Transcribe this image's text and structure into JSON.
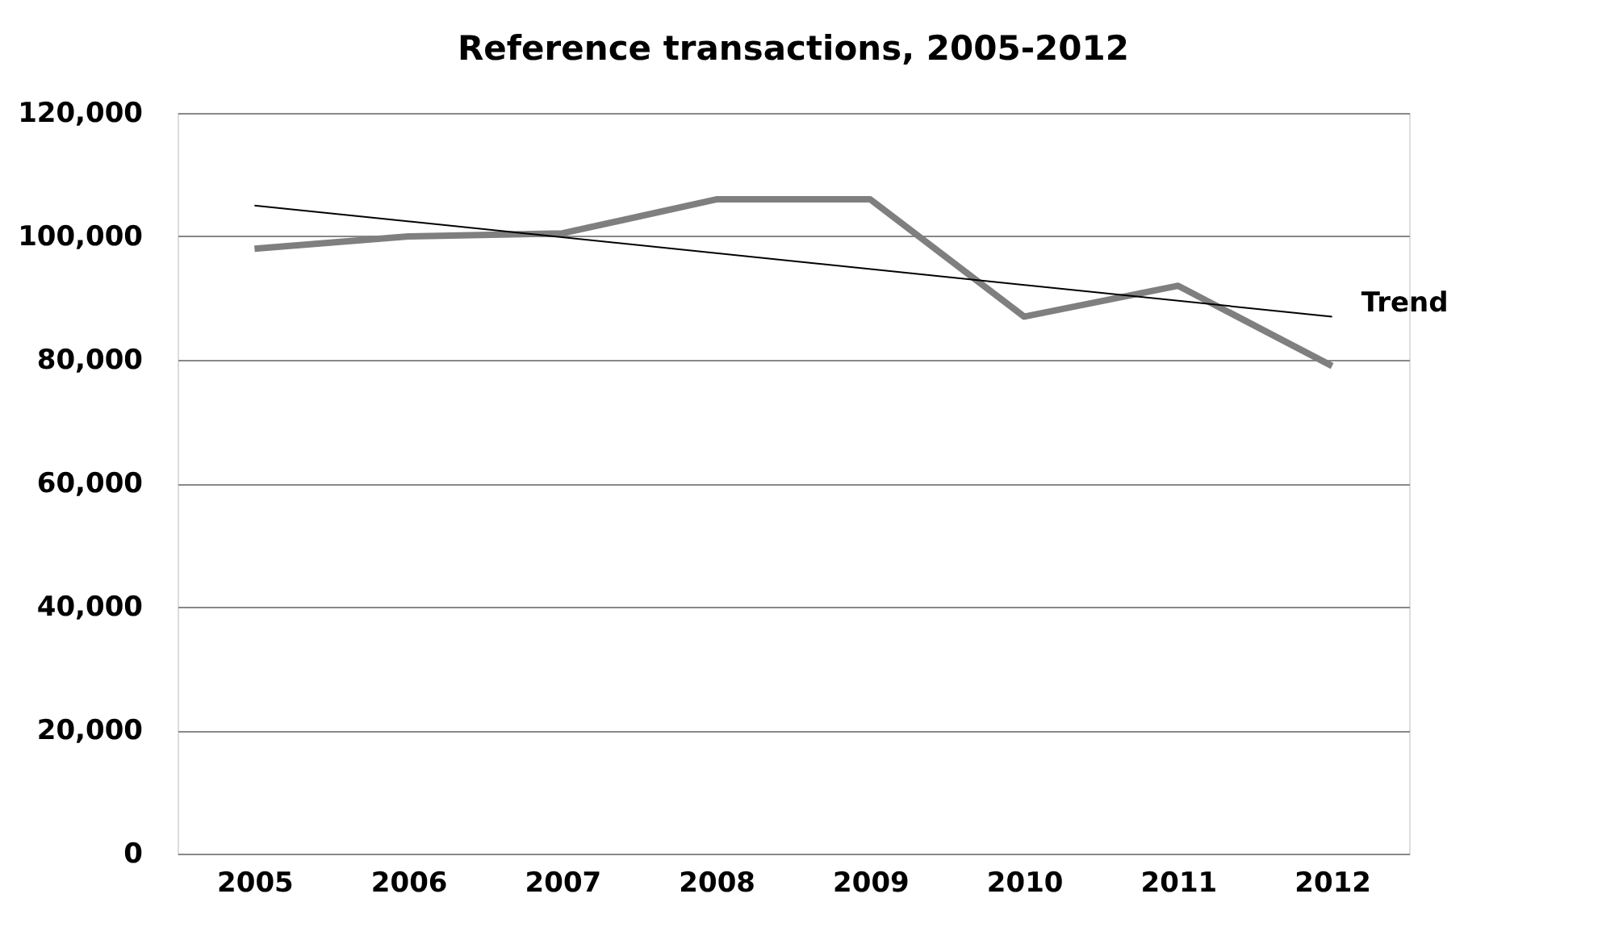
{
  "chart_data": {
    "type": "line",
    "title": "Reference transactions, 2005-2012",
    "categories": [
      "2005",
      "2006",
      "2007",
      "2008",
      "2009",
      "2010",
      "2011",
      "2012"
    ],
    "series": [
      {
        "color": "#7f7f7f",
        "values": [
          98000,
          100000,
          100500,
          106000,
          106000,
          87000,
          92000,
          79000
        ]
      },
      {
        "name": "Trend",
        "type": "line",
        "color": "#000000",
        "values": [
          105000,
          null,
          null,
          null,
          null,
          null,
          null,
          87000
        ]
      }
    ],
    "ylim": [
      0,
      120000
    ],
    "yticks": [
      {
        "value": 0,
        "label": "0"
      },
      {
        "value": 20000,
        "label": "20,000"
      },
      {
        "value": 40000,
        "label": "40,000"
      },
      {
        "value": 60000,
        "label": "60,000"
      },
      {
        "value": 80000,
        "label": "80,000"
      },
      {
        "value": 100000,
        "label": "100,000"
      },
      {
        "value": 120000,
        "label": "120,000"
      }
    ],
    "grid": "y",
    "legend": false,
    "marker": "none",
    "line_style": "solid"
  }
}
